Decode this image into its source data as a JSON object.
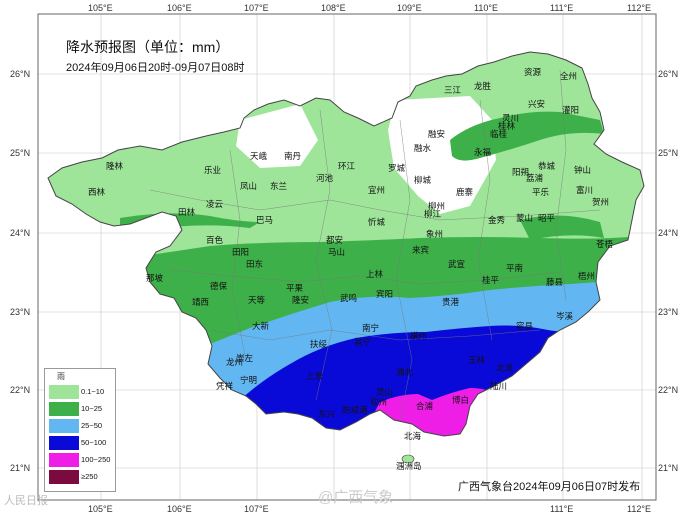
{
  "title": "降水预报图（单位：mm）",
  "period": "2024年09月06日20时-09月07日08时",
  "publisher": "广西气象台2024年09月06日07时发布",
  "watermarks": {
    "left": "人民日报",
    "center": "@广西气象"
  },
  "lon_ticks": [
    "105°E",
    "106°E",
    "107°E",
    "108°E",
    "109°E",
    "110°E",
    "111°E",
    "112°E"
  ],
  "lat_ticks": [
    "26°N",
    "25°N",
    "24°N",
    "23°N",
    "22°N",
    "21°N"
  ],
  "legend": {
    "title": "雨",
    "items": [
      {
        "label": "0.1~10",
        "color": "#9ee59a"
      },
      {
        "label": "10~25",
        "color": "#3eb04a"
      },
      {
        "label": "25~50",
        "color": "#62b7f2"
      },
      {
        "label": "50~100",
        "color": "#0a0ad8"
      },
      {
        "label": "100~250",
        "color": "#ee1ee6"
      },
      {
        "label": "≥250",
        "color": "#7a0a40"
      }
    ]
  },
  "cities": [
    {
      "name": "资源"
    },
    {
      "name": "全州"
    },
    {
      "name": "三江"
    },
    {
      "name": "龙胜"
    },
    {
      "name": "兴安"
    },
    {
      "name": "灌阳"
    },
    {
      "name": "灵川"
    },
    {
      "name": "桂林"
    },
    {
      "name": "临桂"
    },
    {
      "name": "融安"
    },
    {
      "name": "融水"
    },
    {
      "name": "永福"
    },
    {
      "name": "天峨"
    },
    {
      "name": "南丹"
    },
    {
      "name": "乐业"
    },
    {
      "name": "隆林"
    },
    {
      "name": "西林"
    },
    {
      "name": "凤山"
    },
    {
      "name": "东兰"
    },
    {
      "name": "河池"
    },
    {
      "name": "环江"
    },
    {
      "name": "罗城"
    },
    {
      "name": "宜州"
    },
    {
      "name": "柳城"
    },
    {
      "name": "鹿寨"
    },
    {
      "name": "柳州"
    },
    {
      "name": "柳江"
    },
    {
      "name": "阳朔"
    },
    {
      "name": "荔浦"
    },
    {
      "name": "平乐"
    },
    {
      "name": "恭城"
    },
    {
      "name": "钟山"
    },
    {
      "name": "富川"
    },
    {
      "name": "贺州"
    },
    {
      "name": "昭平"
    },
    {
      "name": "蒙山"
    },
    {
      "name": "金秀"
    },
    {
      "name": "象州"
    },
    {
      "name": "武宣"
    },
    {
      "name": "忻城"
    },
    {
      "name": "巴马"
    },
    {
      "name": "凌云"
    },
    {
      "name": "田林"
    },
    {
      "name": "百色"
    },
    {
      "name": "田阳"
    },
    {
      "name": "田东"
    },
    {
      "name": "都安"
    },
    {
      "name": "马山"
    },
    {
      "name": "上林"
    },
    {
      "name": "宾阳"
    },
    {
      "name": "来宾"
    },
    {
      "name": "平南"
    },
    {
      "name": "桂平"
    },
    {
      "name": "藤县"
    },
    {
      "name": "梧州"
    },
    {
      "name": "苍梧"
    },
    {
      "name": "那坡"
    },
    {
      "name": "德保"
    },
    {
      "name": "靖西"
    },
    {
      "name": "天等"
    },
    {
      "name": "平果"
    },
    {
      "name": "隆安"
    },
    {
      "name": "武鸣"
    },
    {
      "name": "大新"
    },
    {
      "name": "横州"
    },
    {
      "name": "贵港"
    },
    {
      "name": "容县"
    },
    {
      "name": "岑溪"
    },
    {
      "name": "崇左"
    },
    {
      "name": "扶绥"
    },
    {
      "name": "南宁"
    },
    {
      "name": "邕宁"
    },
    {
      "name": "灵山"
    },
    {
      "name": "浦北"
    },
    {
      "name": "玉林"
    },
    {
      "name": "北流"
    },
    {
      "name": "陆川"
    },
    {
      "name": "博白"
    },
    {
      "name": "龙州"
    },
    {
      "name": "凭祥"
    },
    {
      "name": "宁明"
    },
    {
      "name": "上思"
    },
    {
      "name": "防城港"
    },
    {
      "name": "钦州"
    },
    {
      "name": "东兴"
    },
    {
      "name": "合浦"
    },
    {
      "name": "北海"
    },
    {
      "name": "涠洲岛"
    }
  ]
}
